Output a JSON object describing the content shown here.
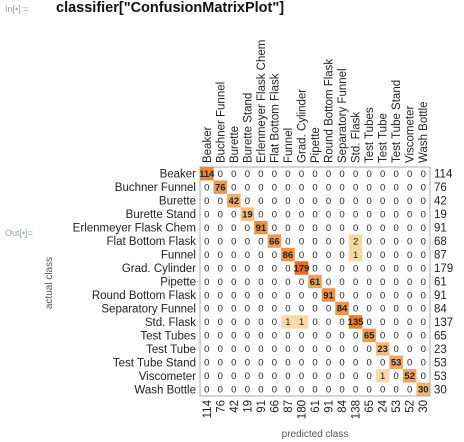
{
  "input_label": "In[•]:=",
  "input_code": "classifier[\"ConfusionMatrixPlot\"]",
  "output_label": "Out[•]=",
  "chart_data": {
    "type": "heatmap",
    "xlabel": "predicted class",
    "ylabel": "actual class",
    "classes": [
      "Beaker",
      "Buchner Funnel",
      "Burette",
      "Burette Stand",
      "Erlenmeyer Flask Chem",
      "Flat Bottom Flask",
      "Funnel",
      "Grad. Cylinder",
      "Pipette",
      "Round Bottom Flask",
      "Separatory Funnel",
      "Std. Flask",
      "Test Tubes",
      "Test Tube",
      "Test Tube Stand",
      "Viscometer",
      "Wash Bottle"
    ],
    "matrix": [
      [
        114,
        0,
        0,
        0,
        0,
        0,
        0,
        0,
        0,
        0,
        0,
        0,
        0,
        0,
        0,
        0,
        0
      ],
      [
        0,
        76,
        0,
        0,
        0,
        0,
        0,
        0,
        0,
        0,
        0,
        0,
        0,
        0,
        0,
        0,
        0
      ],
      [
        0,
        0,
        42,
        0,
        0,
        0,
        0,
        0,
        0,
        0,
        0,
        0,
        0,
        0,
        0,
        0,
        0
      ],
      [
        0,
        0,
        0,
        19,
        0,
        0,
        0,
        0,
        0,
        0,
        0,
        0,
        0,
        0,
        0,
        0,
        0
      ],
      [
        0,
        0,
        0,
        0,
        91,
        0,
        0,
        0,
        0,
        0,
        0,
        0,
        0,
        0,
        0,
        0,
        0
      ],
      [
        0,
        0,
        0,
        0,
        0,
        66,
        0,
        0,
        0,
        0,
        0,
        2,
        0,
        0,
        0,
        0,
        0
      ],
      [
        0,
        0,
        0,
        0,
        0,
        0,
        86,
        0,
        0,
        0,
        0,
        1,
        0,
        0,
        0,
        0,
        0
      ],
      [
        0,
        0,
        0,
        0,
        0,
        0,
        0,
        179,
        0,
        0,
        0,
        0,
        0,
        0,
        0,
        0,
        0
      ],
      [
        0,
        0,
        0,
        0,
        0,
        0,
        0,
        0,
        61,
        0,
        0,
        0,
        0,
        0,
        0,
        0,
        0
      ],
      [
        0,
        0,
        0,
        0,
        0,
        0,
        0,
        0,
        0,
        91,
        0,
        0,
        0,
        0,
        0,
        0,
        0
      ],
      [
        0,
        0,
        0,
        0,
        0,
        0,
        0,
        0,
        0,
        0,
        84,
        0,
        0,
        0,
        0,
        0,
        0
      ],
      [
        0,
        0,
        0,
        0,
        0,
        0,
        1,
        1,
        0,
        0,
        0,
        135,
        0,
        0,
        0,
        0,
        0
      ],
      [
        0,
        0,
        0,
        0,
        0,
        0,
        0,
        0,
        0,
        0,
        0,
        0,
        65,
        0,
        0,
        0,
        0
      ],
      [
        0,
        0,
        0,
        0,
        0,
        0,
        0,
        0,
        0,
        0,
        0,
        0,
        0,
        23,
        0,
        0,
        0
      ],
      [
        0,
        0,
        0,
        0,
        0,
        0,
        0,
        0,
        0,
        0,
        0,
        0,
        0,
        0,
        53,
        0,
        0
      ],
      [
        0,
        0,
        0,
        0,
        0,
        0,
        0,
        0,
        0,
        0,
        0,
        0,
        0,
        1,
        0,
        52,
        0
      ],
      [
        0,
        0,
        0,
        0,
        0,
        0,
        0,
        0,
        0,
        0,
        0,
        0,
        0,
        0,
        0,
        0,
        30
      ]
    ],
    "row_totals": [
      114,
      76,
      42,
      19,
      91,
      68,
      87,
      179,
      61,
      91,
      84,
      137,
      65,
      23,
      53,
      53,
      30
    ],
    "column_totals": [
      114,
      76,
      42,
      19,
      91,
      66,
      87,
      180,
      61,
      91,
      84,
      138,
      65,
      24,
      53,
      52,
      30
    ],
    "colors": {
      "low": "#fdf2c7",
      "high": "#e8701a",
      "text": "#222222"
    }
  }
}
